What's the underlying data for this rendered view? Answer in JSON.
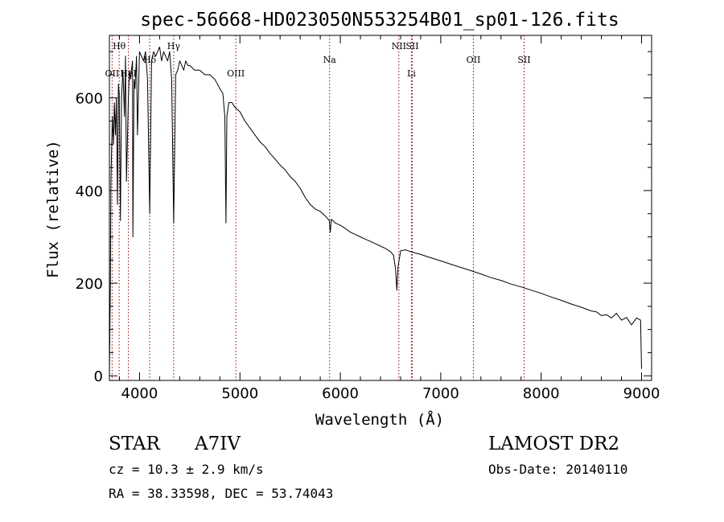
{
  "chart_data": {
    "type": "line",
    "title": "spec-56668-HD023050N553254B01_sp01-126.fits",
    "xlabel": "Wavelength (Å)",
    "ylabel": "Flux (relative)",
    "xlim": [
      3700,
      9100
    ],
    "ylim": [
      -10,
      735
    ],
    "x_ticks": [
      4000,
      5000,
      6000,
      7000,
      8000,
      9000
    ],
    "y_ticks": [
      0,
      200,
      400,
      600
    ],
    "grid": false,
    "line_color": "#000000",
    "marker_color": "#8b0000",
    "series": [
      {
        "x": [
          3700,
          3710,
          3715,
          3720,
          3730,
          3740,
          3750,
          3760,
          3770,
          3780,
          3790,
          3798,
          3810,
          3820,
          3835,
          3850,
          3860,
          3870,
          3889,
          3900,
          3910,
          3930,
          3934,
          3945,
          3955,
          3970,
          3980,
          4000,
          4020,
          4040,
          4060,
          4080,
          4101,
          4120,
          4140,
          4160,
          4180,
          4200,
          4220,
          4240,
          4260,
          4280,
          4300,
          4320,
          4340,
          4360,
          4380,
          4400,
          4420,
          4440,
          4460,
          4480,
          4500,
          4550,
          4600,
          4650,
          4700,
          4750,
          4800,
          4830,
          4850,
          4861,
          4870,
          4890,
          4920,
          4950,
          5000,
          5050,
          5100,
          5150,
          5200,
          5250,
          5300,
          5350,
          5400,
          5450,
          5500,
          5550,
          5600,
          5650,
          5700,
          5750,
          5800,
          5850,
          5890,
          5900,
          5910,
          5950,
          6000,
          6050,
          6100,
          6150,
          6200,
          6250,
          6300,
          6350,
          6400,
          6450,
          6500,
          6530,
          6550,
          6563,
          6575,
          6600,
          6650,
          6700,
          6750,
          6800,
          6900,
          7000,
          7100,
          7200,
          7300,
          7400,
          7500,
          7600,
          7700,
          7800,
          7900,
          8000,
          8100,
          8200,
          8300,
          8400,
          8500,
          8550,
          8600,
          8650,
          8700,
          8750,
          8800,
          8850,
          8900,
          8950,
          8990,
          9000
        ],
        "y": [
          0,
          200,
          420,
          470,
          560,
          500,
          590,
          520,
          600,
          370,
          630,
          610,
          335,
          600,
          660,
          560,
          690,
          420,
          600,
          660,
          640,
          680,
          300,
          640,
          620,
          690,
          520,
          700,
          690,
          680,
          700,
          640,
          350,
          680,
          700,
          690,
          700,
          710,
          680,
          700,
          690,
          680,
          700,
          640,
          330,
          650,
          660,
          680,
          670,
          660,
          680,
          670,
          670,
          660,
          660,
          650,
          650,
          640,
          620,
          610,
          560,
          330,
          560,
          590,
          590,
          580,
          570,
          550,
          535,
          520,
          505,
          495,
          480,
          468,
          455,
          445,
          430,
          420,
          405,
          385,
          370,
          360,
          355,
          345,
          335,
          310,
          338,
          330,
          325,
          318,
          310,
          305,
          300,
          295,
          290,
          285,
          280,
          275,
          268,
          260,
          230,
          185,
          235,
          270,
          272,
          268,
          265,
          262,
          255,
          248,
          241,
          234,
          227,
          220,
          212,
          206,
          198,
          192,
          185,
          178,
          170,
          163,
          155,
          148,
          140,
          138,
          130,
          132,
          125,
          135,
          120,
          126,
          110,
          125,
          120,
          15
        ]
      }
    ],
    "line_markers": [
      {
        "label": "Hθ",
        "wavelength": 3797,
        "row": 0
      },
      {
        "label": "OII",
        "wavelength": 3727,
        "row": 2
      },
      {
        "label": "HeI",
        "wavelength": 3889,
        "row": 2
      },
      {
        "label": "Hδ",
        "wavelength": 4101,
        "row": 1
      },
      {
        "label": "Hγ",
        "wavelength": 4340,
        "row": 0
      },
      {
        "label": "OIII",
        "wavelength": 4959,
        "row": 2
      },
      {
        "label": "Na",
        "wavelength": 5893,
        "row": 1
      },
      {
        "label": "NII",
        "wavelength": 6583,
        "row": 0
      },
      {
        "label": "SII",
        "wavelength": 6716,
        "row": 0
      },
      {
        "label": "Li",
        "wavelength": 6708,
        "row": 2
      },
      {
        "label": "OII",
        "wavelength": 7325,
        "row": 1
      },
      {
        "label": "SII",
        "wavelength": 7830,
        "row": 1
      }
    ]
  },
  "info": {
    "class_label": "STAR",
    "subclass": "A7IV",
    "survey": "LAMOST DR2",
    "redshift_text": "cz = 10.3 ± 2.9 km/s",
    "obs_date": "Obs-Date: 20140110",
    "coords": "RA =  38.33598, DEC =  53.74043"
  }
}
